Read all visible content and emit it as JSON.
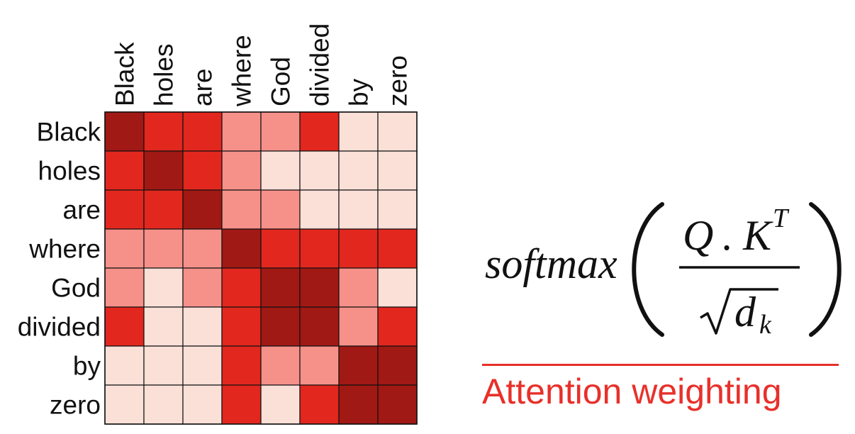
{
  "tokens": [
    "Black",
    "holes",
    "are",
    "where",
    "God",
    "divided",
    "by",
    "zero"
  ],
  "weights": [
    [
      4,
      3,
      3,
      2,
      2,
      3,
      1,
      1
    ],
    [
      3,
      4,
      3,
      2,
      1,
      1,
      1,
      1
    ],
    [
      3,
      3,
      4,
      2,
      2,
      1,
      1,
      1
    ],
    [
      2,
      2,
      2,
      4,
      3,
      3,
      3,
      3
    ],
    [
      2,
      1,
      2,
      3,
      4,
      4,
      2,
      1
    ],
    [
      3,
      1,
      1,
      3,
      4,
      4,
      2,
      3
    ],
    [
      1,
      1,
      1,
      3,
      2,
      2,
      4,
      4
    ],
    [
      1,
      1,
      1,
      3,
      1,
      3,
      4,
      4
    ]
  ],
  "colors": {
    "1": "#fbe0d8",
    "2": "#f6918a",
    "3": "#e2271f",
    "4": "#a11914",
    "grid": "#111111",
    "accent": "#e8302a"
  },
  "formula": {
    "func": "softmax",
    "numerator_q": "Q",
    "numerator_dot": ".",
    "numerator_k": "K",
    "numerator_sup": "T",
    "denominator_d": "d",
    "denominator_sub": "k"
  },
  "caption": "Attention weighting"
}
